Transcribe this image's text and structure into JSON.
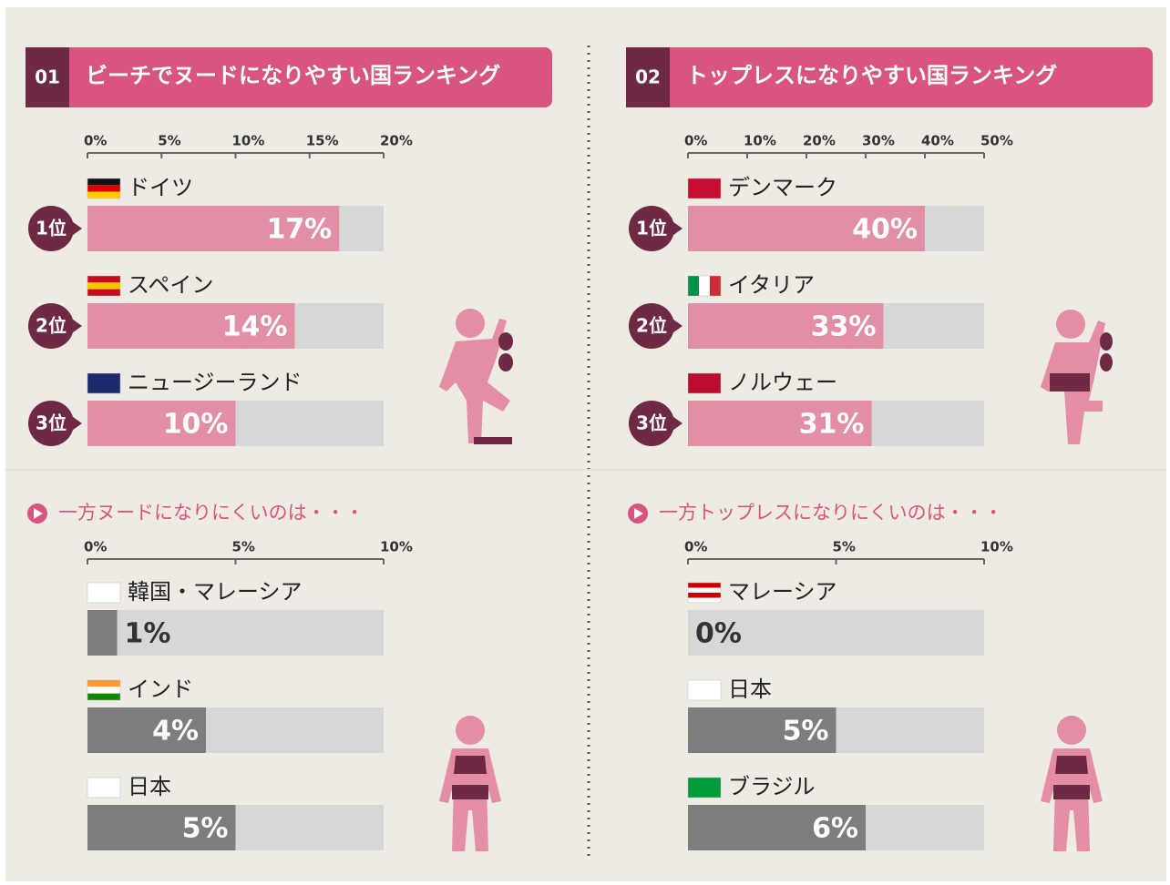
{
  "chart_data": [
    {
      "type": "bar",
      "number": "01",
      "title": "ビーチでヌードになりやすい国ランキング",
      "categories": [
        "ドイツ",
        "スペイン",
        "ニュージーランド"
      ],
      "rank_labels": [
        "1位",
        "2位",
        "3位"
      ],
      "values": [
        17,
        14,
        10
      ],
      "value_labels": [
        "17%",
        "14%",
        "10%"
      ],
      "xlim": [
        0,
        20
      ],
      "xticks": [
        {
          "value": 0,
          "label": "0%"
        },
        {
          "value": 5,
          "label": "5%"
        },
        {
          "value": 10,
          "label": "10%"
        },
        {
          "value": 15,
          "label": "15%"
        },
        {
          "value": 20,
          "label": "20%"
        }
      ],
      "color": "#e28fa5",
      "track_color": "#d7d7d7"
    },
    {
      "type": "bar",
      "subtitle": "一方ヌードになりにくいのは・・・",
      "categories": [
        "韓国・マレーシア",
        "インド",
        "日本"
      ],
      "values": [
        1,
        4,
        5
      ],
      "value_labels": [
        "1%",
        "4%",
        "5%"
      ],
      "xlim": [
        0,
        10
      ],
      "xticks": [
        {
          "value": 0,
          "label": "0%"
        },
        {
          "value": 5,
          "label": "5%"
        },
        {
          "value": 10,
          "label": "10%"
        }
      ],
      "color": "#7d7d7d",
      "track_color": "#d7d7d7"
    },
    {
      "type": "bar",
      "number": "02",
      "title": "トップレスになりやすい国ランキング",
      "categories": [
        "デンマーク",
        "イタリア",
        "ノルウェー"
      ],
      "rank_labels": [
        "1位",
        "2位",
        "3位"
      ],
      "values": [
        40,
        33,
        31
      ],
      "value_labels": [
        "40%",
        "33%",
        "31%"
      ],
      "xlim": [
        0,
        50
      ],
      "xticks": [
        {
          "value": 0,
          "label": "0%"
        },
        {
          "value": 10,
          "label": "10%"
        },
        {
          "value": 20,
          "label": "20%"
        },
        {
          "value": 30,
          "label": "30%"
        },
        {
          "value": 40,
          "label": "40%"
        },
        {
          "value": 50,
          "label": "50%"
        }
      ],
      "color": "#e28fa5",
      "track_color": "#d7d7d7"
    },
    {
      "type": "bar",
      "subtitle": "一方トップレスになりにくいのは・・・",
      "categories": [
        "マレーシア",
        "日本",
        "ブラジル"
      ],
      "values": [
        0,
        5,
        6
      ],
      "value_labels": [
        "0%",
        "5%",
        "6%"
      ],
      "xlim": [
        0,
        10
      ],
      "xticks": [
        {
          "value": 0,
          "label": "0%"
        },
        {
          "value": 5,
          "label": "5%"
        },
        {
          "value": 10,
          "label": "10%"
        }
      ],
      "color": "#7d7d7d",
      "track_color": "#d7d7d7"
    }
  ]
}
